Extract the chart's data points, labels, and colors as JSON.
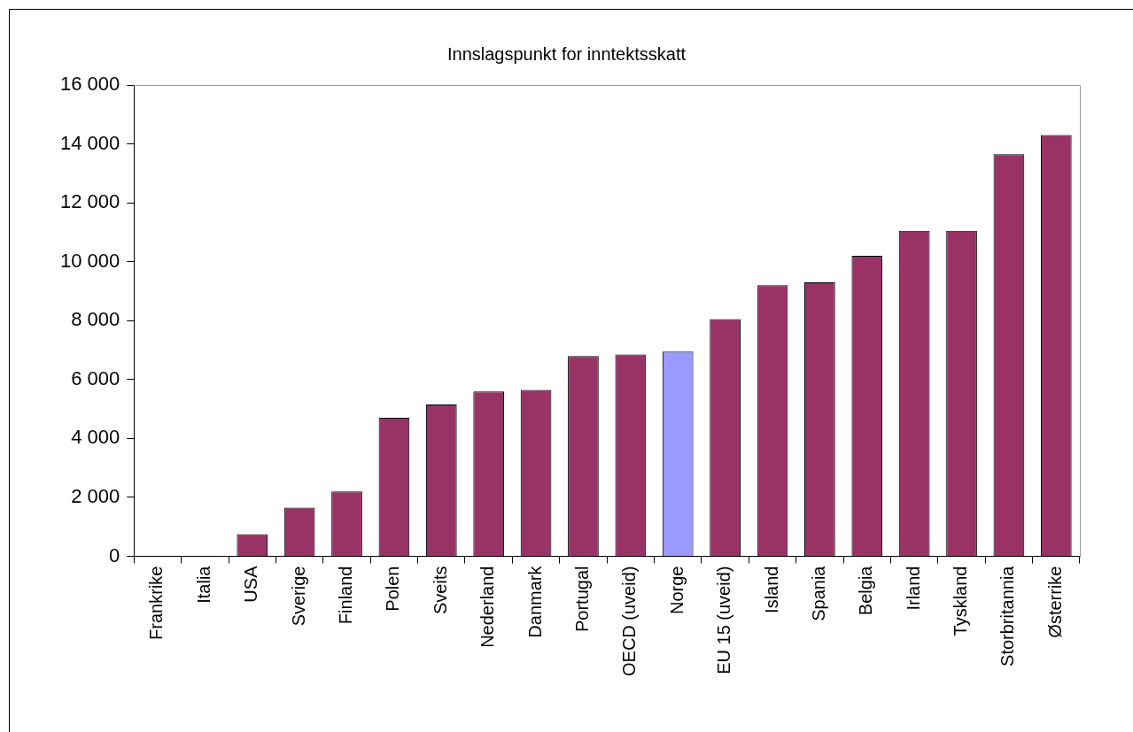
{
  "chart_data": {
    "type": "bar",
    "title": "Innslagspunkt for inntektsskatt",
    "categories": [
      "Frankrike",
      "Italia",
      "USA",
      "Sverige",
      "Finland",
      "Polen",
      "Sveits",
      "Nederland",
      "Danmark",
      "Portugal",
      "OECD (uveid)",
      "Norge",
      "EU 15 (uveid)",
      "Island",
      "Spania",
      "Belgia",
      "Irland",
      "Tyskland",
      "Storbritannia",
      "Østerrike"
    ],
    "values": [
      0,
      0,
      750,
      1650,
      2200,
      4700,
      5150,
      5600,
      5650,
      6800,
      6850,
      6950,
      8050,
      9200,
      9300,
      10200,
      11050,
      11050,
      13650,
      14300
    ],
    "colors": [
      "#993366",
      "#993366",
      "#993366",
      "#993366",
      "#993366",
      "#993366",
      "#993366",
      "#993366",
      "#993366",
      "#993366",
      "#993366",
      "#9999ff",
      "#993366",
      "#993366",
      "#993366",
      "#993366",
      "#993366",
      "#993366",
      "#993366",
      "#993366"
    ],
    "ylim": [
      0,
      16000
    ],
    "yticks": [
      {
        "value": 0,
        "label": "0"
      },
      {
        "value": 2000,
        "label": "2 000"
      },
      {
        "value": 4000,
        "label": "4 000"
      },
      {
        "value": 6000,
        "label": "6 000"
      },
      {
        "value": 8000,
        "label": "8 000"
      },
      {
        "value": 10000,
        "label": "10 000"
      },
      {
        "value": 12000,
        "label": "12 000"
      },
      {
        "value": 14000,
        "label": "14 000"
      },
      {
        "value": 16000,
        "label": "16 000"
      }
    ],
    "grid": false,
    "legend": false
  }
}
